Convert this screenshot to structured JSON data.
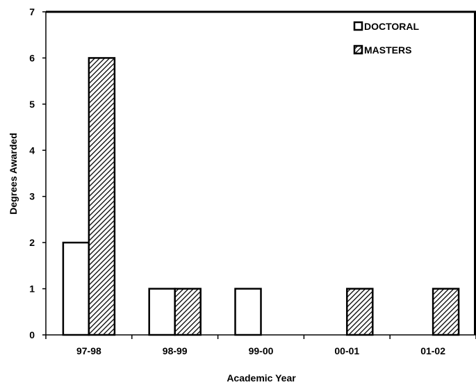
{
  "chart_data": {
    "type": "bar",
    "title": "",
    "xlabel": "Academic Year",
    "ylabel": "Degrees Awarded",
    "categories": [
      "97-98",
      "98-99",
      "99-00",
      "00-01",
      "01-02"
    ],
    "ylim": [
      0,
      7
    ],
    "yticks": [
      "0",
      "1",
      "2",
      "3",
      "4",
      "5",
      "6",
      "7"
    ],
    "grid": false,
    "legend_position": "top-right",
    "series": [
      {
        "name": "DOCTORAL",
        "values": [
          2,
          1,
          1,
          0,
          0
        ],
        "fill": "white"
      },
      {
        "name": "MASTERS",
        "values": [
          6,
          1,
          0,
          1,
          1
        ],
        "fill": "diagonal-hatch"
      }
    ]
  }
}
